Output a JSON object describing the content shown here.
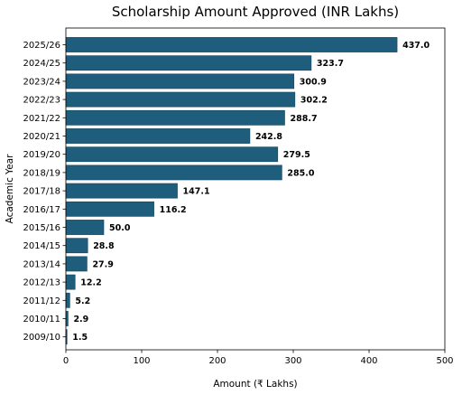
{
  "colors": {
    "bar": "#1f5d7c",
    "bar_edge": "#15455d",
    "axis": "#000000",
    "background": "#ffffff"
  },
  "chart_data": {
    "type": "bar",
    "orientation": "horizontal",
    "title": "Scholarship Amount Approved (INR Lakhs)",
    "xlabel": "Amount (₹ Lakhs)",
    "ylabel": "Academic Year",
    "xlim": [
      0,
      500
    ],
    "xticks": [
      "0",
      "100",
      "200",
      "300",
      "400",
      "500"
    ],
    "grid": false,
    "categories": [
      "2025/26",
      "2024/25",
      "2023/24",
      "2022/23",
      "2021/22",
      "2020/21",
      "2019/20",
      "2018/19",
      "2017/18",
      "2016/17",
      "2015/16",
      "2014/15",
      "2013/14",
      "2012/13",
      "2011/12",
      "2010/11",
      "2009/10"
    ],
    "values": [
      437.0,
      323.7,
      300.9,
      302.2,
      288.7,
      242.8,
      279.5,
      285.0,
      147.1,
      116.2,
      50.0,
      28.8,
      27.9,
      12.2,
      5.2,
      2.9,
      1.5
    ],
    "data_labels": [
      "437.0",
      "323.7",
      "300.9",
      "302.2",
      "288.7",
      "242.8",
      "279.5",
      "285.0",
      "147.1",
      "116.2",
      "50.0",
      "28.8",
      "27.9",
      "12.2",
      "5.2",
      "2.9",
      "1.5"
    ]
  }
}
